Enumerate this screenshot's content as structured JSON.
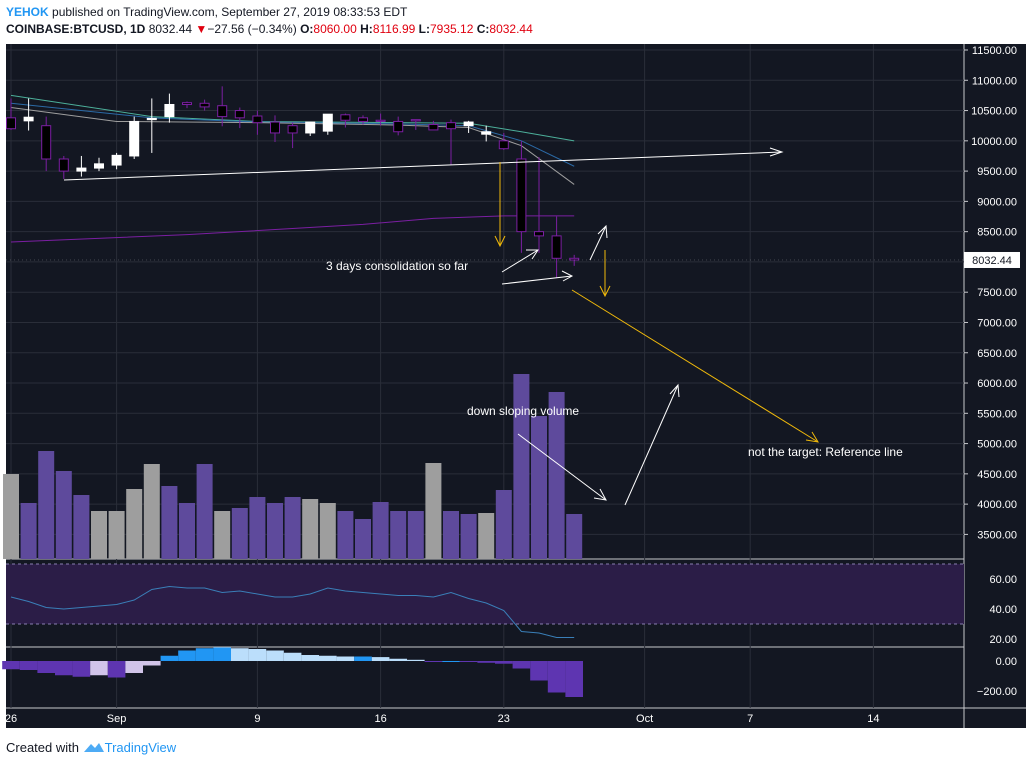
{
  "header": {
    "user": "YEHOK",
    "published_text": " published on TradingView.com, September 27, 2019 08:33:53 EDT",
    "symbol": "COINBASE:BTCUSD, 1D",
    "last": "8032.44",
    "change_arrow": "▼",
    "change": "−27.56 (−0.34%)",
    "o_label": "O:",
    "o_value": "8060.00",
    "h_label": "H:",
    "h_value": "8116.99",
    "l_label": "L:",
    "l_value": "7935.12",
    "c_label": "C:",
    "c_value": "8032.44"
  },
  "footer": {
    "created_with": "Created with",
    "brand": "TradingView",
    "logo_icon": "tradingview-logo-icon"
  },
  "colors": {
    "background": "#131722",
    "up_candle": "#ffffff",
    "down_candle": "#7b1fa2",
    "grid": "#2a2e39",
    "annotation_white": "#ffffff",
    "annotation_yellow": "#f0b90b",
    "volume_up": "#9e9e9e",
    "volume_down": "#5e4a9c",
    "rsi_line": "#3a7fb8",
    "rsi_band": "#2b1d47",
    "macd_pos_dark": "#2196f3",
    "macd_pos_light": "#bbdefb",
    "macd_neg_dark": "#5e35b1",
    "macd_neg_light": "#d1c4e9"
  },
  "chart_data": [
    {
      "type": "candlestick",
      "title": "COINBASE:BTCUSD, 1D",
      "ylim": [
        3000,
        11700
      ],
      "price_ticks": [
        "11500.00",
        "11000.00",
        "10500.00",
        "10000.00",
        "9500.00",
        "9000.00",
        "8500.00",
        "8000.00",
        "7500.00",
        "7000.00",
        "6500.00",
        "6000.00",
        "5500.00",
        "5000.00",
        "4500.00",
        "4000.00",
        "3500.00"
      ],
      "price_tick_values": [
        11500,
        11000,
        10500,
        10000,
        9500,
        9000,
        8500,
        8000,
        7500,
        7000,
        6500,
        6000,
        5500,
        5000,
        4500,
        4000,
        3500
      ],
      "last_price_label": "8032.44",
      "x_labels": [
        "26",
        "Sep",
        "9",
        "16",
        "23",
        "Oct",
        "7",
        "14"
      ],
      "x_label_days": [
        0,
        6,
        14,
        21,
        28,
        36,
        42,
        49
      ],
      "days": [
        0,
        1,
        2,
        3,
        4,
        5,
        6,
        7,
        8,
        9,
        10,
        11,
        12,
        13,
        14,
        15,
        16,
        17,
        18,
        19,
        20,
        21,
        22,
        23,
        24,
        25,
        26,
        27,
        28,
        29,
        30,
        31,
        32
      ],
      "open": [
        10380,
        10330,
        10250,
        9700,
        9500,
        9550,
        9600,
        9750,
        10350,
        10400,
        10630,
        10620,
        10580,
        10500,
        10410,
        10310,
        10250,
        10130,
        10160,
        10430,
        10380,
        10340,
        10320,
        10350,
        10270,
        10300,
        10250,
        10110,
        10000,
        9700,
        8500,
        8430,
        8060
      ],
      "high": [
        10700,
        10700,
        10400,
        9750,
        9750,
        9720,
        9800,
        10400,
        10700,
        10780,
        10650,
        10680,
        10900,
        10550,
        10500,
        10420,
        10300,
        10250,
        10420,
        10450,
        10420,
        10450,
        10400,
        10350,
        10330,
        10350,
        10330,
        10250,
        10130,
        10000,
        9730,
        8750,
        8117
      ],
      "low": [
        10180,
        10170,
        9500,
        9370,
        9410,
        9500,
        9530,
        9700,
        9800,
        10300,
        10540,
        10500,
        10240,
        10210,
        10100,
        9980,
        9880,
        10080,
        10100,
        10220,
        10270,
        10250,
        10090,
        10180,
        10200,
        9600,
        10130,
        9990,
        9850,
        8150,
        8150,
        7740,
        7935
      ],
      "close": [
        10200,
        10390,
        9700,
        9500,
        9550,
        9620,
        9760,
        10320,
        10370,
        10600,
        10600,
        10560,
        10400,
        10380,
        10300,
        10130,
        10130,
        10310,
        10440,
        10340,
        10320,
        10320,
        10150,
        10330,
        10180,
        10200,
        10310,
        10150,
        9870,
        8500,
        8430,
        8060,
        8032
      ],
      "moving_averages": [
        {
          "color": "#4caf9a",
          "points": [
            [
              0,
              10750
            ],
            [
              8,
              10400
            ],
            [
              14,
              10320
            ],
            [
              22,
              10300
            ],
            [
              26,
              10290
            ],
            [
              29,
              10150
            ],
            [
              32,
              10000
            ]
          ]
        },
        {
          "color": "#2b6aa6",
          "points": [
            [
              0,
              10620
            ],
            [
              8,
              10380
            ],
            [
              14,
              10310
            ],
            [
              22,
              10280
            ],
            [
              26,
              10250
            ],
            [
              29,
              10000
            ],
            [
              32,
              9580
            ]
          ]
        },
        {
          "color": "#9e9e9e",
          "points": [
            [
              0,
              10550
            ],
            [
              6,
              10320
            ],
            [
              14,
              10300
            ],
            [
              22,
              10260
            ],
            [
              26,
              10220
            ],
            [
              29,
              9920
            ],
            [
              32,
              9280
            ]
          ]
        },
        {
          "color": "#7b1fa2",
          "points": [
            [
              0,
              8330
            ],
            [
              10,
              8450
            ],
            [
              20,
              8620
            ],
            [
              24,
              8720
            ],
            [
              28,
              8760
            ],
            [
              32,
              8760
            ]
          ]
        }
      ]
    },
    {
      "type": "bar",
      "title": "Volume",
      "days": [
        0,
        1,
        2,
        3,
        4,
        5,
        6,
        7,
        8,
        9,
        10,
        11,
        12,
        13,
        14,
        15,
        16,
        17,
        18,
        19,
        20,
        21,
        22,
        23,
        24,
        25,
        26,
        27,
        28,
        29,
        30,
        31,
        32
      ],
      "values": [
        85,
        56,
        108,
        88,
        64,
        48,
        48,
        70,
        95,
        73,
        56,
        95,
        48,
        51,
        62,
        56,
        62,
        60,
        56,
        48,
        40,
        57,
        48,
        48,
        96,
        48,
        45,
        46,
        69,
        185,
        143,
        167,
        45
      ],
      "ylim": [
        0,
        200
      ],
      "up": [
        true,
        false,
        false,
        false,
        false,
        true,
        true,
        true,
        true,
        false,
        false,
        false,
        true,
        false,
        false,
        false,
        false,
        true,
        true,
        false,
        false,
        false,
        false,
        false,
        true,
        false,
        false,
        true,
        false,
        false,
        false,
        false,
        false
      ]
    },
    {
      "type": "line",
      "title": "RSI",
      "y_ticks": [
        "60.00",
        "40.00",
        "20.00"
      ],
      "y_tick_values": [
        60,
        40,
        20
      ],
      "bands": [
        30,
        70
      ],
      "ylim": [
        15,
        75
      ],
      "x": [
        0,
        1,
        2,
        3,
        4,
        5,
        6,
        7,
        8,
        9,
        10,
        11,
        12,
        13,
        14,
        15,
        16,
        17,
        18,
        19,
        20,
        21,
        22,
        23,
        24,
        25,
        26,
        27,
        28,
        29,
        30,
        31,
        32
      ],
      "values": [
        48,
        45,
        41,
        40,
        41,
        42,
        43,
        46,
        53,
        55,
        54,
        54,
        51,
        52,
        50,
        48,
        48,
        50,
        54,
        52,
        51,
        50,
        49,
        49,
        48,
        51,
        47,
        44,
        39,
        25,
        24,
        21,
        21
      ]
    },
    {
      "type": "bar",
      "title": "MACD histogram",
      "y_ticks": [
        "0.00",
        "−200.00"
      ],
      "y_tick_values": [
        0,
        -200
      ],
      "ylim": [
        -250,
        90
      ],
      "days": [
        0,
        1,
        2,
        3,
        4,
        5,
        6,
        7,
        8,
        9,
        10,
        11,
        12,
        13,
        14,
        15,
        16,
        17,
        18,
        19,
        20,
        21,
        22,
        23,
        24,
        25,
        26,
        27,
        28,
        29,
        30,
        31,
        32
      ],
      "values": [
        -55,
        -60,
        -80,
        -95,
        -105,
        -95,
        -110,
        -80,
        -30,
        35,
        70,
        85,
        90,
        85,
        80,
        70,
        55,
        40,
        35,
        30,
        30,
        26,
        15,
        8,
        -3,
        0,
        -6,
        -12,
        -18,
        -50,
        -130,
        -210,
        -240
      ]
    }
  ],
  "annotations": {
    "consolidation": "3 days consolidation so far",
    "volume": "down sloping volume",
    "target": "not the target: Reference line"
  }
}
